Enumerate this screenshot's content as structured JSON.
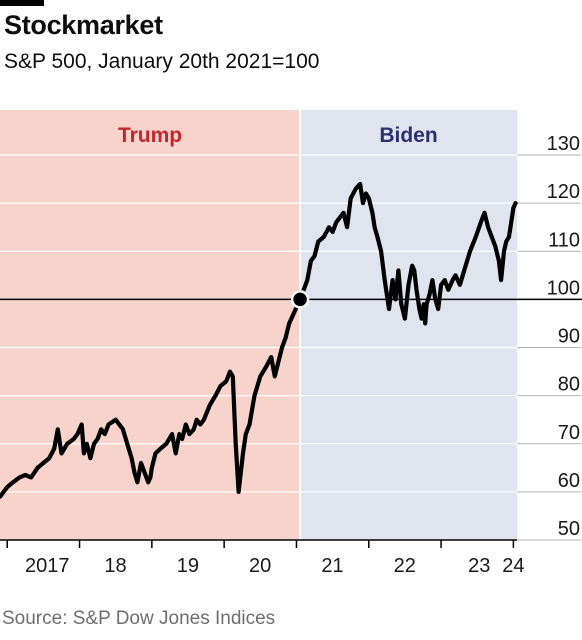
{
  "header": {
    "title": "Stockmarket",
    "subtitle": "S&P 500, January 20th 2021=100"
  },
  "footer": {
    "source": "Source: S&P Dow Jones Indices"
  },
  "chart_data": {
    "type": "line",
    "title": "Stockmarket",
    "subtitle": "S&P 500, January 20th 2021=100",
    "ylim": [
      50,
      130
    ],
    "yticks": [
      50,
      60,
      70,
      80,
      90,
      100,
      110,
      120,
      130
    ],
    "ytick_labels": [
      "50",
      "60",
      "70",
      "80",
      "90",
      "100",
      "110",
      "120",
      "130"
    ],
    "xlim": [
      2016.9,
      2024.05
    ],
    "xticks": [
      2017,
      2018,
      2019,
      2020,
      2021,
      2022,
      2023,
      2024
    ],
    "xtick_labels": [
      "2017",
      "18",
      "19",
      "20",
      "21",
      "22",
      "23",
      "24"
    ],
    "reference_line": 100,
    "marker": {
      "x": 2021.05,
      "y": 100
    },
    "periods": [
      {
        "name": "Trump",
        "start": 2016.9,
        "end": 2021.05,
        "color": "#f7d3cc",
        "label_color": "#c4262e"
      },
      {
        "name": "Biden",
        "start": 2021.05,
        "end": 2024.05,
        "color": "#dfe4ee",
        "label_color": "#2d3070"
      }
    ],
    "line_color": "#000000",
    "grid": "horizontal",
    "series": [
      {
        "x": [
          2016.9,
          2016.95,
          2017.0,
          2017.08,
          2017.17,
          2017.25,
          2017.33,
          2017.42,
          2017.5,
          2017.58,
          2017.65,
          2017.7,
          2017.75,
          2017.83,
          2017.92,
          2017.97,
          2018.03,
          2018.06,
          2018.1,
          2018.15,
          2018.2,
          2018.25,
          2018.3,
          2018.35,
          2018.4,
          2018.5,
          2018.6,
          2018.68,
          2018.72,
          2018.76,
          2018.8,
          2018.85,
          2018.9,
          2018.95,
          2018.98,
          2019.0,
          2019.05,
          2019.12,
          2019.2,
          2019.28,
          2019.33,
          2019.38,
          2019.42,
          2019.47,
          2019.52,
          2019.58,
          2019.62,
          2019.67,
          2019.72,
          2019.8,
          2019.88,
          2019.95,
          2020.03,
          2020.08,
          2020.12,
          2020.16,
          2020.2,
          2020.23,
          2020.26,
          2020.3,
          2020.35,
          2020.42,
          2020.5,
          2020.58,
          2020.65,
          2020.7,
          2020.75,
          2020.8,
          2020.85,
          2020.9,
          2020.96,
          2021.05,
          2021.1,
          2021.15,
          2021.2,
          2021.25,
          2021.3,
          2021.38,
          2021.45,
          2021.5,
          2021.55,
          2021.6,
          2021.65,
          2021.7,
          2021.75,
          2021.82,
          2021.88,
          2021.92,
          2021.96,
          2022.0,
          2022.05,
          2022.08,
          2022.12,
          2022.17,
          2022.22,
          2022.28,
          2022.33,
          2022.37,
          2022.41,
          2022.45,
          2022.5,
          2022.55,
          2022.6,
          2022.63,
          2022.66,
          2022.7,
          2022.73,
          2022.76,
          2022.78,
          2022.8,
          2022.84,
          2022.88,
          2022.92,
          2022.96,
          2023.0,
          2023.05,
          2023.1,
          2023.16,
          2023.2,
          2023.26,
          2023.32,
          2023.4,
          2023.48,
          2023.55,
          2023.6,
          2023.65,
          2023.7,
          2023.75,
          2023.8,
          2023.83,
          2023.87,
          2023.9,
          2023.94,
          2023.97,
          2024.0,
          2024.03
        ],
        "y": [
          59,
          60,
          61,
          62,
          63,
          63.5,
          63,
          65,
          66,
          67,
          69,
          73,
          68,
          70,
          71,
          72,
          74,
          68,
          70,
          67,
          70,
          71,
          73,
          72,
          74,
          75,
          73,
          69,
          67,
          64,
          62,
          66,
          64,
          62,
          63,
          65,
          68,
          69,
          70,
          72,
          68,
          72,
          71,
          74,
          72,
          73,
          75,
          74,
          75,
          78,
          80,
          82,
          83,
          85,
          84,
          70,
          60,
          64,
          68,
          72,
          74,
          80,
          84,
          86,
          88,
          84,
          87,
          90,
          92,
          95,
          97,
          100,
          102,
          104,
          108,
          109,
          112,
          113,
          115,
          114,
          116,
          117,
          118,
          115,
          121,
          123,
          124,
          120,
          122,
          121,
          118,
          115,
          113,
          110,
          104,
          98,
          104,
          100,
          106,
          99,
          96,
          103,
          107,
          106,
          102,
          98,
          96,
          99,
          95,
          99,
          101,
          104,
          100,
          98,
          103,
          104,
          102,
          104,
          105,
          103,
          106,
          110,
          113,
          116,
          118,
          115,
          113,
          111,
          108,
          104,
          110,
          112,
          113,
          116,
          119,
          120
        ]
      }
    ]
  }
}
